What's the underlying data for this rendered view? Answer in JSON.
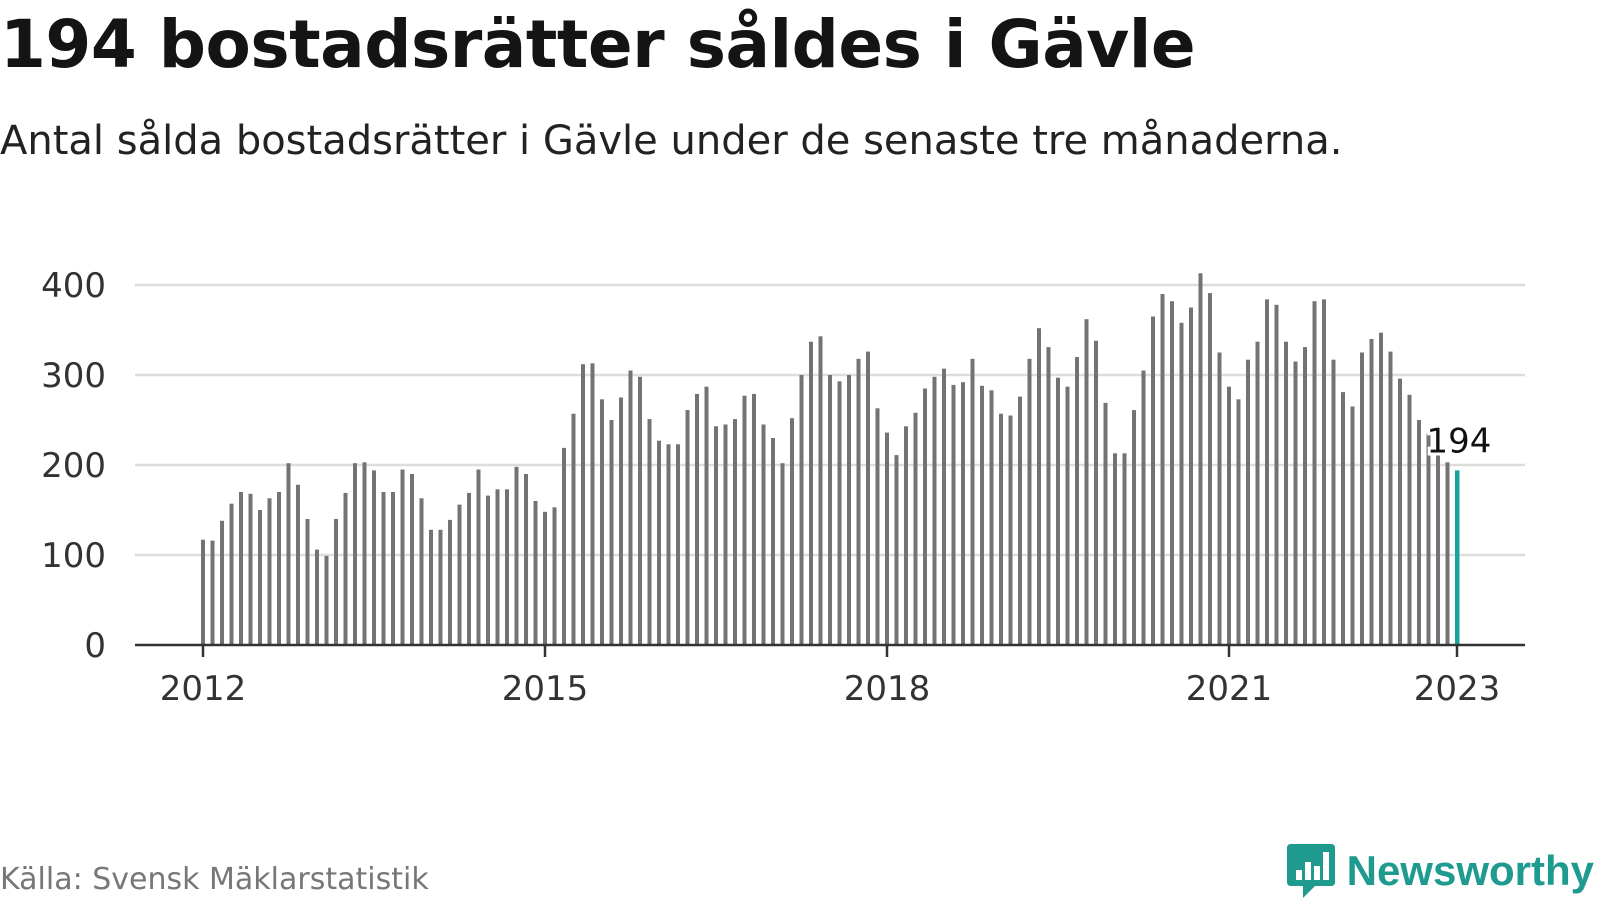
{
  "title": "194 bostadsrätter såldes i Gävle",
  "subtitle": "Antal sålda bostadsrätter i Gävle under de senaste tre månaderna.",
  "source": "Källa: Svensk Mäklarstatistik",
  "brand": "Newsworthy",
  "colors": {
    "bar": "#737373",
    "highlight": "#1aa39a",
    "grid": "#dddddd",
    "axis": "#333333",
    "brand": "#1f9a8e"
  },
  "chart_data": {
    "type": "bar",
    "x_start": "2012-01",
    "x_end": "2023-01",
    "xticks": [
      "2012",
      "2015",
      "2018",
      "2021",
      "2023"
    ],
    "yticks": [
      0,
      100,
      200,
      300,
      400
    ],
    "ylim": [
      0,
      420
    ],
    "grid": true,
    "highlight_label": "194",
    "values": [
      117,
      116,
      138,
      157,
      170,
      168,
      150,
      163,
      170,
      202,
      178,
      140,
      106,
      99,
      140,
      169,
      202,
      203,
      194,
      170,
      170,
      195,
      190,
      163,
      128,
      128,
      139,
      156,
      169,
      195,
      166,
      173,
      173,
      198,
      190,
      160,
      148,
      153,
      219,
      257,
      312,
      313,
      273,
      250,
      275,
      305,
      298,
      251,
      227,
      223,
      223,
      261,
      279,
      287,
      243,
      245,
      251,
      277,
      279,
      245,
      230,
      202,
      252,
      300,
      337,
      343,
      300,
      293,
      300,
      318,
      326,
      263,
      236,
      211,
      243,
      258,
      285,
      298,
      307,
      289,
      292,
      318,
      288,
      283,
      257,
      255,
      276,
      318,
      352,
      331,
      297,
      287,
      320,
      362,
      338,
      269,
      213,
      213,
      261,
      305,
      365,
      390,
      382,
      358,
      375,
      413,
      391,
      325,
      287,
      273,
      317,
      337,
      384,
      378,
      337,
      315,
      331,
      382,
      384,
      317,
      281,
      265,
      325,
      340,
      347,
      326,
      296,
      278,
      250,
      235,
      212,
      203,
      194
    ]
  }
}
